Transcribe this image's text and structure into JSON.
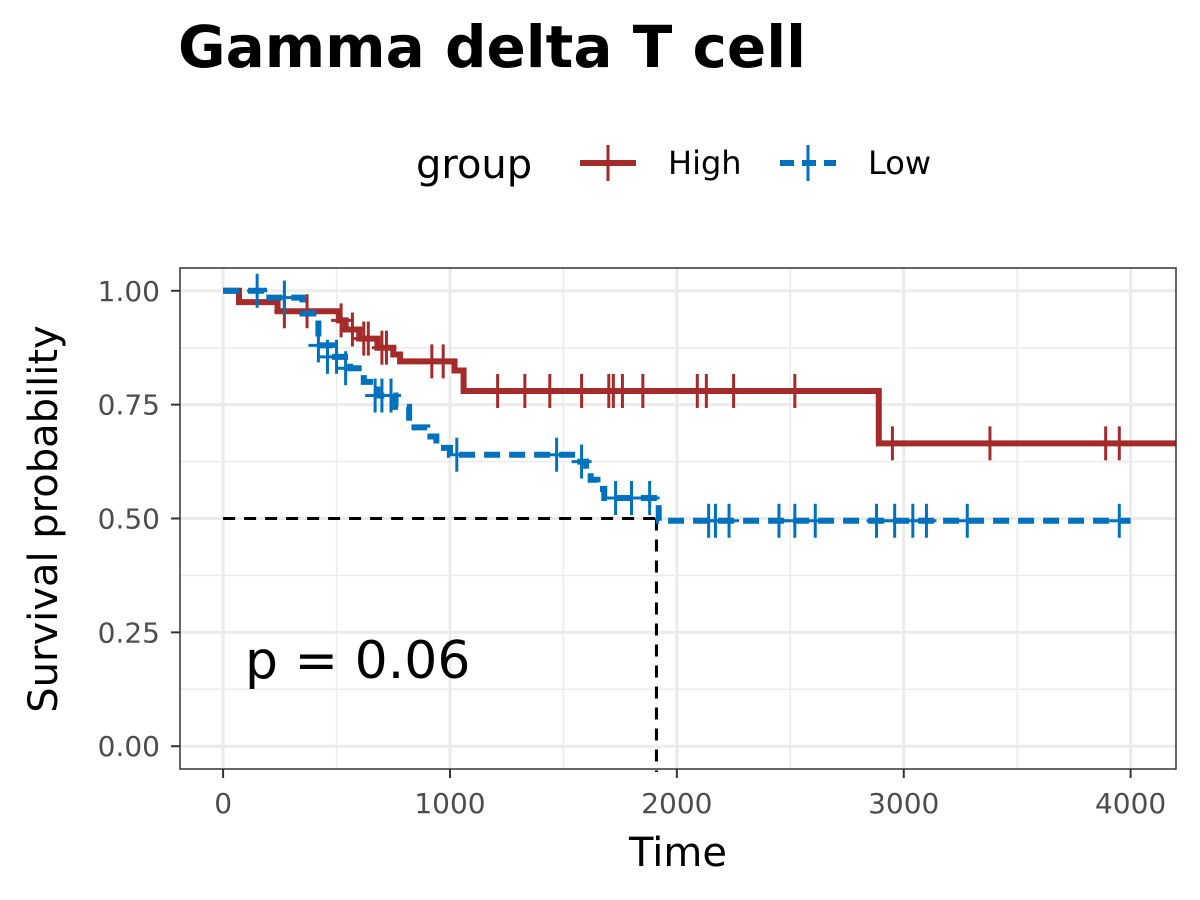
{
  "chart_data": {
    "type": "line",
    "subtype": "kaplan-meier",
    "title": "Gamma delta T cell",
    "xlabel": "Time",
    "ylabel": "Survival probability",
    "xlim": [
      -190,
      4200
    ],
    "ylim": [
      -0.05,
      1.05
    ],
    "x_ticks": [
      0,
      1000,
      2000,
      3000,
      4000
    ],
    "x_tick_labels": [
      "0",
      "1000",
      "2000",
      "3000",
      "4000"
    ],
    "y_ticks": [
      0,
      0.25,
      0.5,
      0.75,
      1.0
    ],
    "y_tick_labels": [
      "0.00",
      "0.25",
      "0.50",
      "0.75",
      "1.00"
    ],
    "grid": true,
    "legend": {
      "title": "group",
      "position": "top"
    },
    "annotation": "p = 0.06",
    "median_survival": {
      "y": 0.5,
      "x": 1910
    },
    "series": [
      {
        "name": "High",
        "color": "#a52a2a",
        "dash": "solid",
        "steps": [
          [
            0,
            1.0
          ],
          [
            70,
            0.975
          ],
          [
            240,
            0.955
          ],
          [
            510,
            0.935
          ],
          [
            540,
            0.915
          ],
          [
            600,
            0.895
          ],
          [
            680,
            0.875
          ],
          [
            750,
            0.86
          ],
          [
            780,
            0.845
          ],
          [
            1020,
            0.825
          ],
          [
            1060,
            0.78
          ],
          [
            2880,
            0.78
          ],
          [
            2890,
            0.665
          ],
          [
            4200,
            0.665
          ]
        ],
        "censored": [
          [
            270,
            0.955
          ],
          [
            370,
            0.955
          ],
          [
            520,
            0.935
          ],
          [
            570,
            0.915
          ],
          [
            620,
            0.895
          ],
          [
            640,
            0.895
          ],
          [
            700,
            0.875
          ],
          [
            720,
            0.875
          ],
          [
            920,
            0.845
          ],
          [
            970,
            0.845
          ],
          [
            1210,
            0.78
          ],
          [
            1330,
            0.78
          ],
          [
            1440,
            0.78
          ],
          [
            1580,
            0.78
          ],
          [
            1700,
            0.78
          ],
          [
            1720,
            0.78
          ],
          [
            1760,
            0.78
          ],
          [
            1850,
            0.78
          ],
          [
            2090,
            0.78
          ],
          [
            2130,
            0.78
          ],
          [
            2250,
            0.78
          ],
          [
            2520,
            0.78
          ],
          [
            2950,
            0.665
          ],
          [
            3380,
            0.665
          ],
          [
            3890,
            0.665
          ],
          [
            3950,
            0.665
          ]
        ]
      },
      {
        "name": "Low",
        "color": "#0072bd",
        "dash": "dashed",
        "steps": [
          [
            0,
            1.0
          ],
          [
            180,
            0.985
          ],
          [
            350,
            0.95
          ],
          [
            420,
            0.88
          ],
          [
            480,
            0.855
          ],
          [
            560,
            0.83
          ],
          [
            620,
            0.8
          ],
          [
            680,
            0.77
          ],
          [
            760,
            0.745
          ],
          [
            820,
            0.7
          ],
          [
            900,
            0.68
          ],
          [
            940,
            0.655
          ],
          [
            1000,
            0.64
          ],
          [
            1500,
            0.64
          ],
          [
            1560,
            0.625
          ],
          [
            1600,
            0.6
          ],
          [
            1620,
            0.585
          ],
          [
            1650,
            0.565
          ],
          [
            1680,
            0.545
          ],
          [
            1910,
            0.545
          ],
          [
            1920,
            0.495
          ],
          [
            4000,
            0.495
          ]
        ],
        "censored": [
          [
            150,
            1.0
          ],
          [
            270,
            0.985
          ],
          [
            420,
            0.88
          ],
          [
            460,
            0.855
          ],
          [
            500,
            0.855
          ],
          [
            540,
            0.83
          ],
          [
            670,
            0.77
          ],
          [
            700,
            0.77
          ],
          [
            740,
            0.77
          ],
          [
            1030,
            0.64
          ],
          [
            1470,
            0.64
          ],
          [
            1580,
            0.625
          ],
          [
            1730,
            0.545
          ],
          [
            1800,
            0.545
          ],
          [
            1880,
            0.545
          ],
          [
            2140,
            0.495
          ],
          [
            2170,
            0.495
          ],
          [
            2230,
            0.495
          ],
          [
            2450,
            0.495
          ],
          [
            2520,
            0.495
          ],
          [
            2610,
            0.495
          ],
          [
            2880,
            0.495
          ],
          [
            2960,
            0.495
          ],
          [
            3040,
            0.495
          ],
          [
            3100,
            0.495
          ],
          [
            3280,
            0.495
          ],
          [
            3950,
            0.495
          ]
        ]
      }
    ]
  }
}
